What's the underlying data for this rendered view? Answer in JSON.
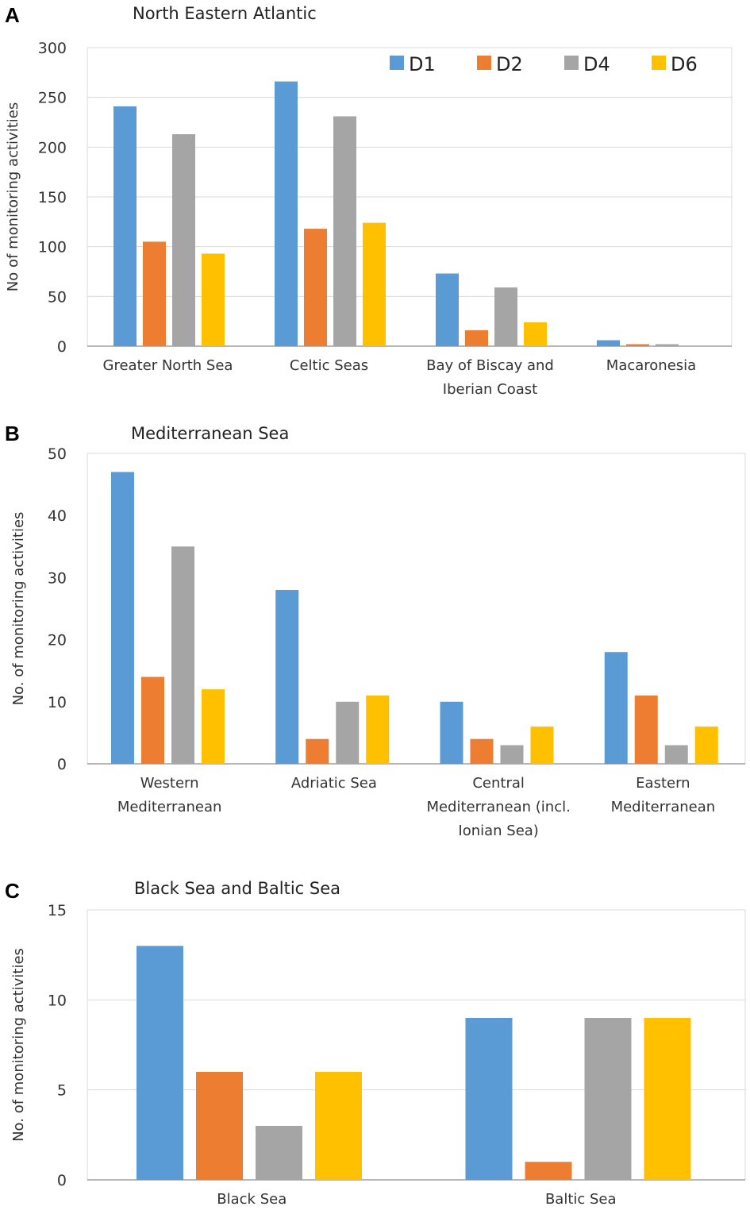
{
  "colors": {
    "D1": "#5b9bd5",
    "D2": "#ed7d31",
    "D4": "#a5a5a5",
    "D6": "#ffc000",
    "grid": "#d9d9d9",
    "axis": "#8c8c8c"
  },
  "legend": [
    "D1",
    "D2",
    "D4",
    "D6"
  ],
  "chart_data": [
    {
      "type": "bar",
      "panel": "A",
      "title": "North Eastern Atlantic",
      "ylabel": "No of monitoring activities",
      "xlabel": "",
      "ylim": [
        0,
        300
      ],
      "yticks": [
        0,
        50,
        100,
        150,
        200,
        250,
        300
      ],
      "categories": [
        [
          "Greater North Sea"
        ],
        [
          "Celtic Seas"
        ],
        [
          "Bay of Biscay and",
          "Iberian Coast"
        ],
        [
          "Macaronesia"
        ]
      ],
      "series": [
        {
          "name": "D1",
          "values": [
            241,
            266,
            73,
            6
          ]
        },
        {
          "name": "D2",
          "values": [
            105,
            118,
            16,
            2
          ]
        },
        {
          "name": "D4",
          "values": [
            213,
            231,
            59,
            2
          ]
        },
        {
          "name": "D6",
          "values": [
            93,
            124,
            24,
            0
          ]
        }
      ],
      "grid": true,
      "legend_position": "top-right"
    },
    {
      "type": "bar",
      "panel": "B",
      "title": "Mediterranean Sea",
      "ylabel": "No. of monitoring activities",
      "xlabel": "",
      "ylim": [
        0,
        50
      ],
      "yticks": [
        0,
        10,
        20,
        30,
        40,
        50
      ],
      "categories": [
        [
          "Western",
          "Mediterranean"
        ],
        [
          "Adriatic Sea"
        ],
        [
          "Central",
          "Mediterranean (incl.",
          "Ionian Sea)"
        ],
        [
          "Eastern",
          "Mediterranean"
        ]
      ],
      "series": [
        {
          "name": "D1",
          "values": [
            47,
            28,
            10,
            18
          ]
        },
        {
          "name": "D2",
          "values": [
            14,
            4,
            4,
            11
          ]
        },
        {
          "name": "D4",
          "values": [
            35,
            10,
            3,
            3
          ]
        },
        {
          "name": "D6",
          "values": [
            12,
            11,
            6,
            6
          ]
        }
      ],
      "grid": false
    },
    {
      "type": "bar",
      "panel": "C",
      "title": "Black Sea and Baltic Sea",
      "ylabel": "No. of monitoring activities",
      "xlabel": "",
      "ylim": [
        0,
        15
      ],
      "yticks": [
        0,
        5,
        10,
        15
      ],
      "categories": [
        [
          "Black Sea"
        ],
        [
          "Baltic Sea"
        ]
      ],
      "series": [
        {
          "name": "D1",
          "values": [
            13,
            9
          ]
        },
        {
          "name": "D2",
          "values": [
            6,
            1
          ]
        },
        {
          "name": "D4",
          "values": [
            3,
            9
          ]
        },
        {
          "name": "D6",
          "values": [
            6,
            9
          ]
        }
      ],
      "grid": true
    }
  ]
}
